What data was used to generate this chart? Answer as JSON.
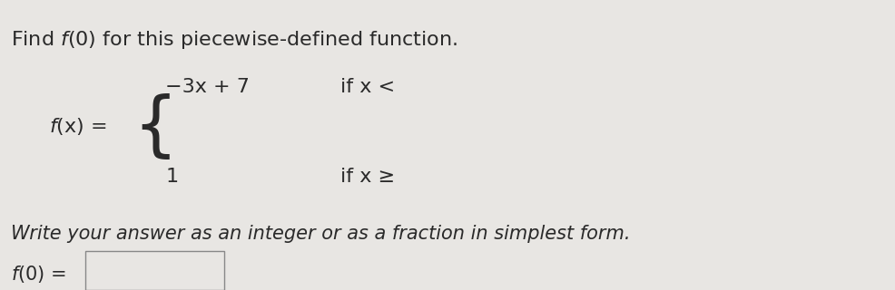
{
  "bg_color": "#e8e6e3",
  "title_text1": "Find ",
  "title_italic": "f",
  "title_text2": "(0) for this piecewise-defined function.",
  "title_fontsize": 16,
  "fx_italic": "f",
  "fx_rest": "(x) =",
  "piece1_expr": "−3x + 7",
  "piece1_cond": "if x <",
  "piece2_expr": "1",
  "piece2_cond": "if x ≥",
  "write_text": "Write your answer as an integer or as a fraction in simplest form.",
  "write_fontsize": 15,
  "answer_italic": "f",
  "answer_rest": "(0) =",
  "answer_fontsize": 15,
  "text_color": "#2a2a2a"
}
